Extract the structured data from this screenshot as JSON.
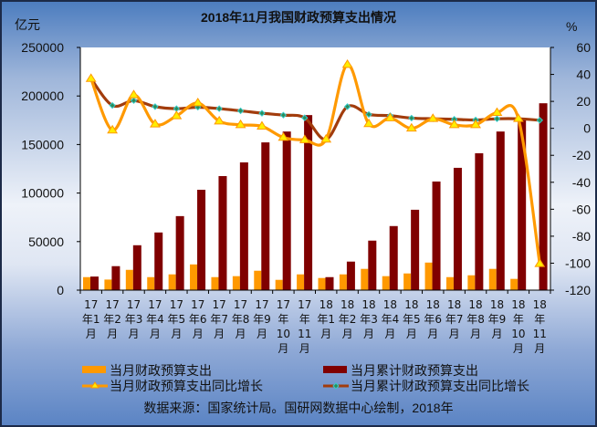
{
  "chart_data": {
    "type": "bar+line",
    "title": "2018年11月我国财政预算支出情况",
    "ylabel_left": "亿元",
    "ylabel_right": "%",
    "ylim_left": [
      0,
      250000
    ],
    "yticks_left": [
      "0",
      "50000",
      "100000",
      "150000",
      "200000",
      "250000"
    ],
    "ylim_right": [
      -120,
      60
    ],
    "yticks_right": [
      "-120",
      "-100",
      "-80",
      "-60",
      "-40",
      "-20",
      "0",
      "20",
      "40",
      "60"
    ],
    "categories": [
      "17年1月",
      "17年2月",
      "17年3月",
      "17年4月",
      "17年5月",
      "17年6月",
      "17年7月",
      "17年8月",
      "17年9月",
      "17年10月",
      "17年11月",
      "18年1月",
      "18年2月",
      "18年3月",
      "18年4月",
      "18年5月",
      "18年6月",
      "18年7月",
      "18年8月",
      "18年9月",
      "18年10月",
      "18年11月"
    ],
    "series": [
      {
        "name": "当月财政预算支出",
        "type": "bar",
        "axis": "left",
        "color": "#FF9900",
        "values": [
          13400,
          10900,
          20900,
          13400,
          16250,
          26500,
          13400,
          14400,
          20000,
          10600,
          16250,
          12500,
          16250,
          21900,
          14400,
          17200,
          28400,
          13400,
          15300,
          21900,
          11600,
          null
        ]
      },
      {
        "name": "当月累计财政预算支出",
        "type": "bar",
        "axis": "left",
        "color": "#800000",
        "values": [
          14000,
          24700,
          46250,
          59400,
          76250,
          103400,
          117500,
          131600,
          152200,
          163400,
          180300,
          13400,
          29400,
          51000,
          66000,
          82800,
          111900,
          126000,
          141000,
          163400,
          177500,
          192500
        ]
      },
      {
        "name": "当月财政预算支出同比增长",
        "type": "line",
        "axis": "right",
        "color": "#FF9900",
        "values": [
          36.8,
          -1.4,
          24.7,
          3.1,
          9.2,
          18.8,
          5.3,
          2.6,
          1.5,
          -6.8,
          -8.6,
          -8.2,
          47.2,
          3.3,
          7.6,
          0,
          7.1,
          2.6,
          2.6,
          11.6,
          7.1,
          -100.5
        ]
      },
      {
        "name": "当月累计财政预算支出同比增长",
        "type": "line",
        "axis": "right",
        "color": "#A23C0C",
        "values": [
          36.8,
          17,
          20.6,
          16.1,
          14.6,
          15.7,
          14.6,
          13,
          11.2,
          9.8,
          7.8,
          -8.2,
          16.1,
          10.3,
          9.4,
          7.6,
          7.1,
          6.7,
          6.2,
          7.1,
          7.1,
          6.0
        ]
      }
    ],
    "legend_position": "bottom",
    "grid": false
  },
  "source": "数据来源：国家统计局。国研网数据中心绘制，2018年"
}
